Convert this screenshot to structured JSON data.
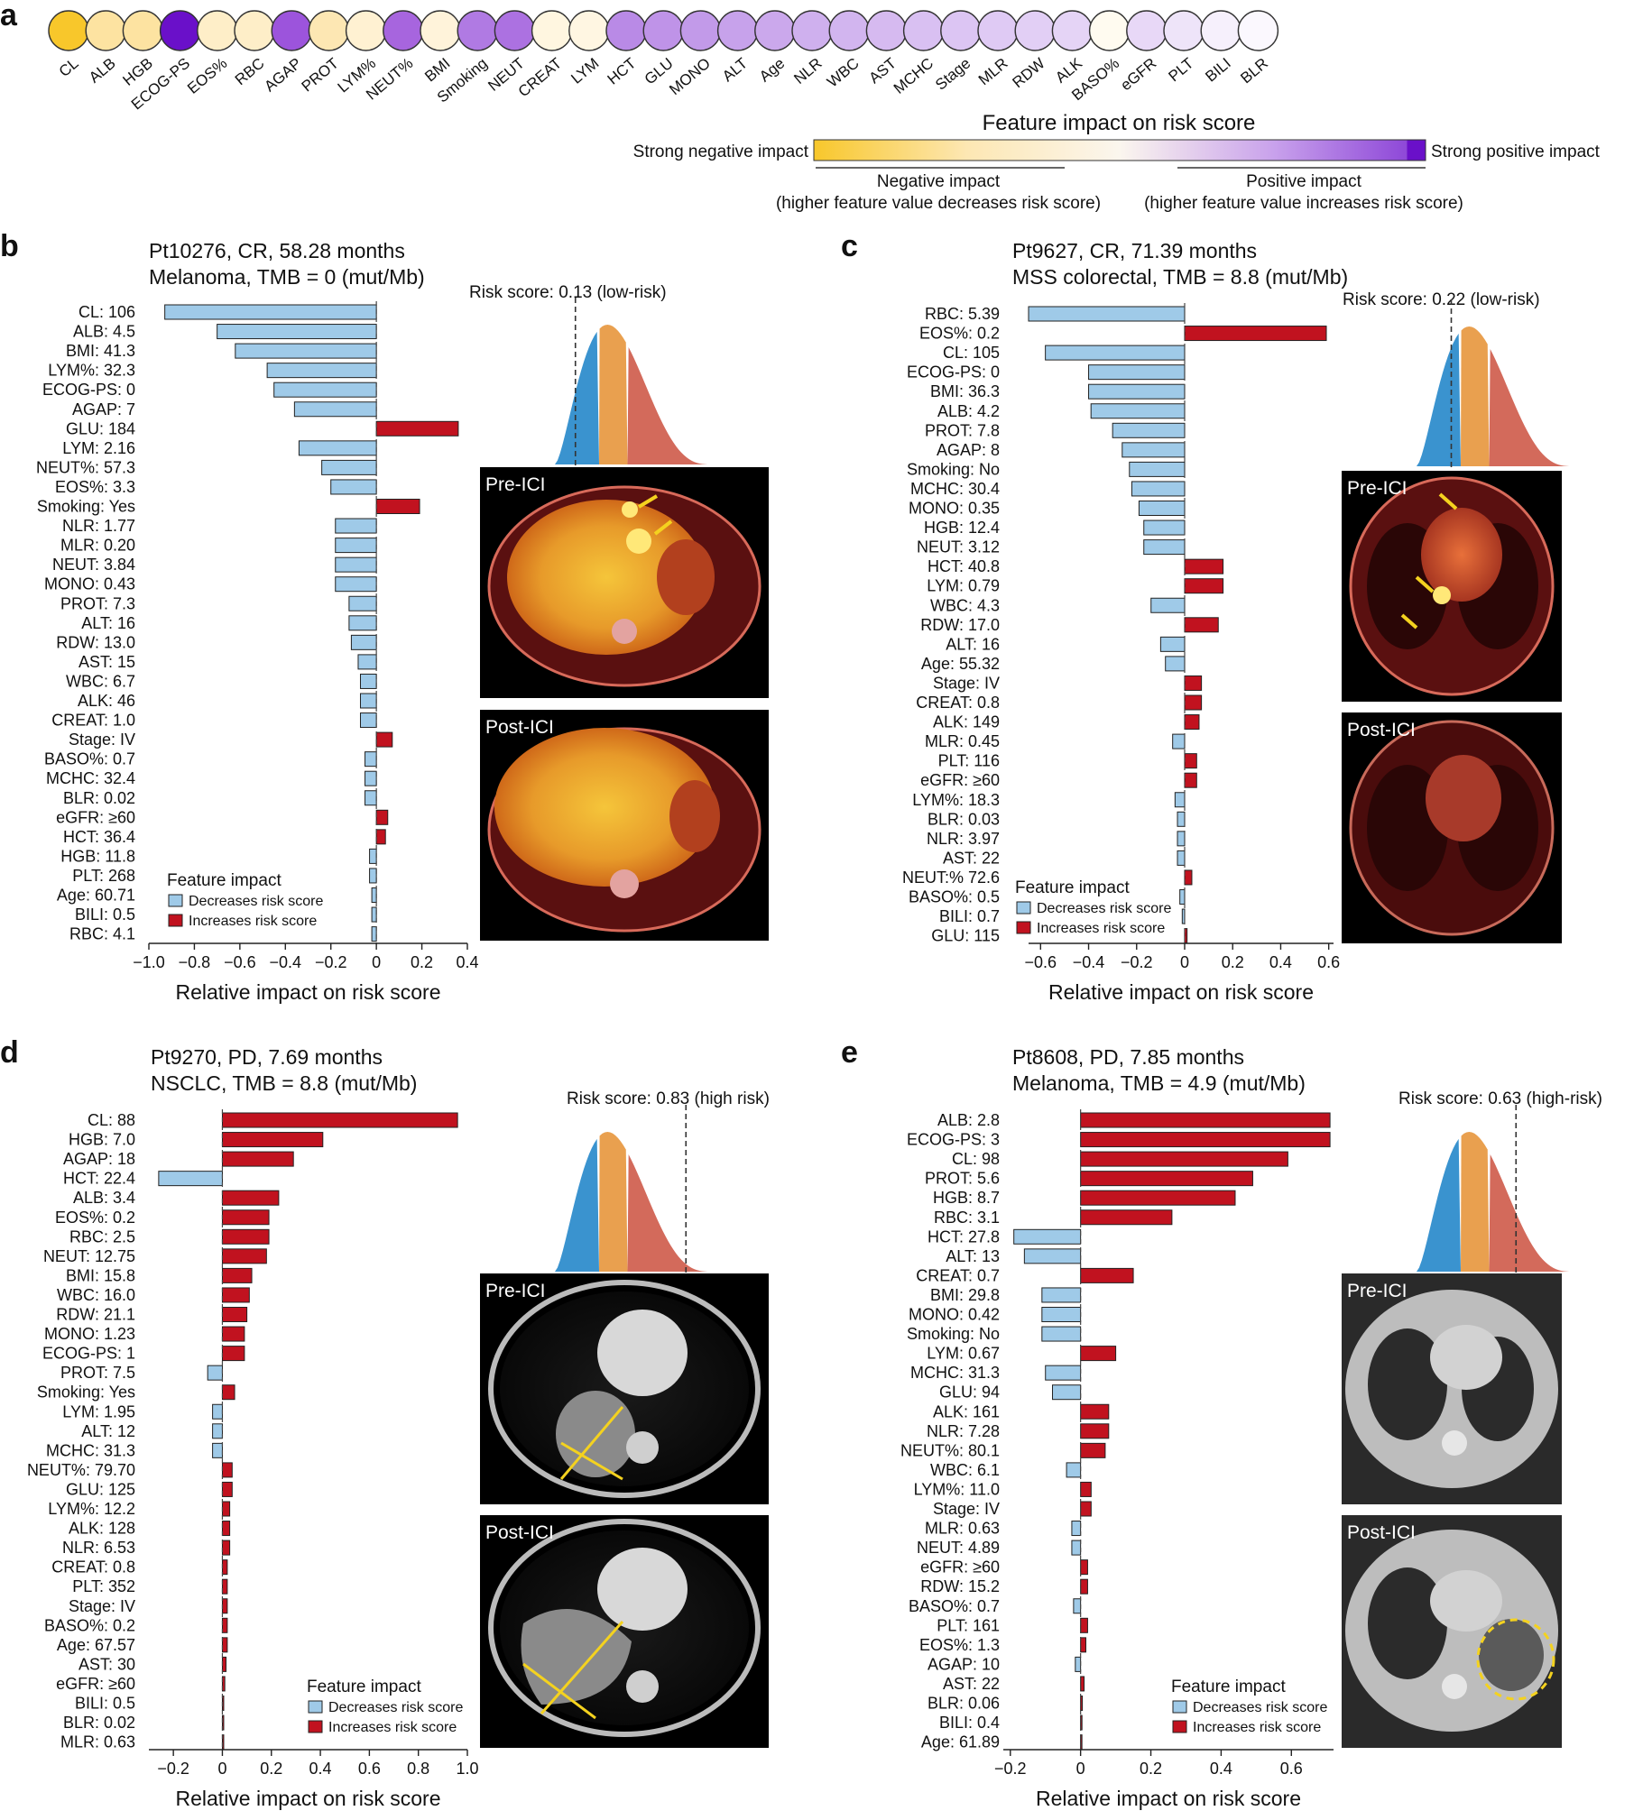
{
  "colors": {
    "decrease": "#9fcae8",
    "increase": "#c1121f",
    "negative_strong": "#f8c72b",
    "positive_strong": "#6a10c9",
    "dist_blue": "#3a93cf",
    "dist_orange": "#e9a04f",
    "dist_red": "#d36a5b"
  },
  "panel_a": {
    "letter": "a",
    "features": [
      {
        "name": "CL",
        "color": "#f8c72b"
      },
      {
        "name": "ALB",
        "color": "#fde3a1"
      },
      {
        "name": "HGB",
        "color": "#fde3a1"
      },
      {
        "name": "ECOG-PS",
        "color": "#6a10c9"
      },
      {
        "name": "EOS%",
        "color": "#feeec8"
      },
      {
        "name": "RBC",
        "color": "#feeec8"
      },
      {
        "name": "AGAP",
        "color": "#9c54dc"
      },
      {
        "name": "PROT",
        "color": "#fde7b3"
      },
      {
        "name": "LYM%",
        "color": "#fff1d2"
      },
      {
        "name": "NEUT%",
        "color": "#a765de"
      },
      {
        "name": "BMI",
        "color": "#fff3da"
      },
      {
        "name": "Smoking",
        "color": "#b07ae3"
      },
      {
        "name": "NEUT",
        "color": "#ac71e1"
      },
      {
        "name": "CREAT",
        "color": "#fff6e0"
      },
      {
        "name": "LYM",
        "color": "#fff6e2"
      },
      {
        "name": "HCT",
        "color": "#b98ae6"
      },
      {
        "name": "GLU",
        "color": "#bf93e8"
      },
      {
        "name": "MONO",
        "color": "#c29ae9"
      },
      {
        "name": "ALT",
        "color": "#c7a2eb"
      },
      {
        "name": "Age",
        "color": "#cba8ec"
      },
      {
        "name": "NLR",
        "color": "#cfb0ee"
      },
      {
        "name": "WBC",
        "color": "#d2b5ef"
      },
      {
        "name": "AST",
        "color": "#d6baf0"
      },
      {
        "name": "MCHC",
        "color": "#d9c0f2"
      },
      {
        "name": "Stage",
        "color": "#dcc5f3"
      },
      {
        "name": "MLR",
        "color": "#dfcaf4"
      },
      {
        "name": "RDW",
        "color": "#e2cff5"
      },
      {
        "name": "ALK",
        "color": "#e5d4f6"
      },
      {
        "name": "BASO%",
        "color": "#fffbf0"
      },
      {
        "name": "eGFR",
        "color": "#e8d8f7"
      },
      {
        "name": "PLT",
        "color": "#eee4f9"
      },
      {
        "name": "BILI",
        "color": "#f6f0fc"
      },
      {
        "name": "BLR",
        "color": "#fbf8fe"
      }
    ],
    "colorbar_title": "Feature impact on risk score",
    "left_label": "Strong negative impact",
    "right_label": "Strong positive impact",
    "negative_bracket": "Negative impact",
    "negative_note": "(higher feature value decreases risk score)",
    "positive_bracket": "Positive impact",
    "positive_note": "(higher feature value increases risk score)"
  },
  "chart_data": [
    {
      "panel": "b",
      "type": "bar",
      "orientation": "horizontal",
      "title": "Pt10276, CR, 58.28 months",
      "subtitle": "Melanoma, TMB = 0 (mut/Mb)",
      "risk_label": "Risk score: 0.13 (low-risk)",
      "risk_score": 0.13,
      "pre_label": "Pre-ICI",
      "post_label": "Post-ICI",
      "xlabel": "Relative impact on risk score",
      "xlim": [
        -1.0,
        0.4
      ],
      "xticks": [
        -1.0,
        -0.8,
        -0.6,
        -0.4,
        -0.2,
        0,
        0.2,
        0.4
      ],
      "xtick_labels": [
        "−1.0",
        "−0.8",
        "−0.6",
        "−0.4",
        "−0.2",
        "0",
        "0.2",
        "0.4"
      ],
      "legend_title": "Feature impact",
      "legend_decrease": "Decreases risk score",
      "legend_increase": "Increases risk score",
      "legend_position": "bottom-left",
      "features": [
        {
          "label": "CL: 106",
          "value": -0.93
        },
        {
          "label": "ALB: 4.5",
          "value": -0.7
        },
        {
          "label": "BMI: 41.3",
          "value": -0.62
        },
        {
          "label": "LYM%: 32.3",
          "value": -0.48
        },
        {
          "label": "ECOG-PS: 0",
          "value": -0.45
        },
        {
          "label": "AGAP: 7",
          "value": -0.36
        },
        {
          "label": "GLU: 184",
          "value": 0.36
        },
        {
          "label": "LYM: 2.16",
          "value": -0.34
        },
        {
          "label": "NEUT%: 57.3",
          "value": -0.24
        },
        {
          "label": "EOS%: 3.3",
          "value": -0.2
        },
        {
          "label": "Smoking: Yes",
          "value": 0.19
        },
        {
          "label": "NLR: 1.77",
          "value": -0.18
        },
        {
          "label": "MLR: 0.20",
          "value": -0.18
        },
        {
          "label": "NEUT: 3.84",
          "value": -0.18
        },
        {
          "label": "MONO: 0.43",
          "value": -0.18
        },
        {
          "label": "PROT: 7.3",
          "value": -0.12
        },
        {
          "label": "ALT: 16",
          "value": -0.12
        },
        {
          "label": "RDW: 13.0",
          "value": -0.11
        },
        {
          "label": "AST: 15",
          "value": -0.08
        },
        {
          "label": "WBC: 6.7",
          "value": -0.07
        },
        {
          "label": "ALK: 46",
          "value": -0.07
        },
        {
          "label": "CREAT: 1.0",
          "value": -0.07
        },
        {
          "label": "Stage: IV",
          "value": 0.07
        },
        {
          "label": "BASO%: 0.7",
          "value": -0.05
        },
        {
          "label": "MCHC: 32.4",
          "value": -0.05
        },
        {
          "label": "BLR: 0.02",
          "value": -0.05
        },
        {
          "label": "eGFR: ≥60",
          "value": 0.05
        },
        {
          "label": "HCT: 36.4",
          "value": 0.04
        },
        {
          "label": "HGB: 11.8",
          "value": -0.03
        },
        {
          "label": "PLT: 268",
          "value": -0.03
        },
        {
          "label": "Age: 60.71",
          "value": -0.02
        },
        {
          "label": "BILI: 0.5",
          "value": -0.02
        },
        {
          "label": "RBC: 4.1",
          "value": -0.02
        }
      ]
    },
    {
      "panel": "c",
      "type": "bar",
      "orientation": "horizontal",
      "title": "Pt9627, CR, 71.39 months",
      "subtitle": "MSS colorectal, TMB = 8.8 (mut/Mb)",
      "risk_label": "Risk score: 0.22 (low-risk)",
      "risk_score": 0.22,
      "pre_label": "Pre-ICI",
      "post_label": "Post-ICI",
      "xlabel": "Relative impact on risk score",
      "xlim": [
        -0.65,
        0.62
      ],
      "xticks": [
        -0.6,
        -0.4,
        -0.2,
        0,
        0.2,
        0.4,
        0.6
      ],
      "xtick_labels": [
        "−0.6",
        "−0.4",
        "−0.2",
        "0",
        "0.2",
        "0.4",
        "0.6"
      ],
      "legend_title": "Feature impact",
      "legend_decrease": "Decreases risk score",
      "legend_increase": "Increases risk score",
      "legend_position": "bottom-left",
      "features": [
        {
          "label": "RBC: 5.39",
          "value": -0.65
        },
        {
          "label": "EOS%: 0.2",
          "value": 0.59
        },
        {
          "label": "CL: 105",
          "value": -0.58
        },
        {
          "label": "ECOG-PS: 0",
          "value": -0.4
        },
        {
          "label": "BMI: 36.3",
          "value": -0.4
        },
        {
          "label": "ALB: 4.2",
          "value": -0.39
        },
        {
          "label": "PROT: 7.8",
          "value": -0.3
        },
        {
          "label": "AGAP: 8",
          "value": -0.26
        },
        {
          "label": "Smoking: No",
          "value": -0.23
        },
        {
          "label": "MCHC: 30.4",
          "value": -0.22
        },
        {
          "label": "MONO: 0.35",
          "value": -0.19
        },
        {
          "label": "HGB: 12.4",
          "value": -0.17
        },
        {
          "label": "NEUT: 3.12",
          "value": -0.17
        },
        {
          "label": "HCT: 40.8",
          "value": 0.16
        },
        {
          "label": "LYM: 0.79",
          "value": 0.16
        },
        {
          "label": "WBC: 4.3",
          "value": -0.14
        },
        {
          "label": "RDW: 17.0",
          "value": 0.14
        },
        {
          "label": "ALT: 16",
          "value": -0.1
        },
        {
          "label": "Age: 55.32",
          "value": -0.08
        },
        {
          "label": "Stage: IV",
          "value": 0.07
        },
        {
          "label": "CREAT: 0.8",
          "value": 0.07
        },
        {
          "label": "ALK: 149",
          "value": 0.06
        },
        {
          "label": "MLR: 0.45",
          "value": -0.05
        },
        {
          "label": "PLT: 116",
          "value": 0.05
        },
        {
          "label": "eGFR: ≥60",
          "value": 0.05
        },
        {
          "label": "LYM%: 18.3",
          "value": -0.04
        },
        {
          "label": "BLR: 0.03",
          "value": -0.03
        },
        {
          "label": "NLR: 3.97",
          "value": -0.03
        },
        {
          "label": "AST: 22",
          "value": -0.03
        },
        {
          "label": "NEUT:% 72.6",
          "value": 0.03
        },
        {
          "label": "BASO%: 0.5",
          "value": -0.02
        },
        {
          "label": "BILI: 0.7",
          "value": -0.01
        },
        {
          "label": "GLU: 115",
          "value": 0.01
        }
      ]
    },
    {
      "panel": "d",
      "type": "bar",
      "orientation": "horizontal",
      "title": "Pt9270, PD, 7.69 months",
      "subtitle": "NSCLC, TMB = 8.8 (mut/Mb)",
      "risk_label": "Risk score: 0.83 (high risk)",
      "risk_score": 0.83,
      "pre_label": "Pre-ICI",
      "post_label": "Post-ICI",
      "xlabel": "Relative impact on risk score",
      "xlim": [
        -0.3,
        1.0
      ],
      "xticks": [
        -0.2,
        0,
        0.2,
        0.4,
        0.6,
        0.8,
        1.0
      ],
      "xtick_labels": [
        "−0.2",
        "0",
        "0.2",
        "0.4",
        "0.6",
        "0.8",
        "1.0"
      ],
      "legend_title": "Feature impact",
      "legend_decrease": "Decreases risk score",
      "legend_increase": "Increases risk score",
      "legend_position": "bottom-right",
      "features": [
        {
          "label": "CL: 88",
          "value": 0.96
        },
        {
          "label": "HGB: 7.0",
          "value": 0.41
        },
        {
          "label": "AGAP: 18",
          "value": 0.29
        },
        {
          "label": "HCT: 22.4",
          "value": -0.26
        },
        {
          "label": "ALB: 3.4",
          "value": 0.23
        },
        {
          "label": "EOS%: 0.2",
          "value": 0.19
        },
        {
          "label": "RBC: 2.5",
          "value": 0.19
        },
        {
          "label": "NEUT: 12.75",
          "value": 0.18
        },
        {
          "label": "BMI: 15.8",
          "value": 0.12
        },
        {
          "label": "WBC: 16.0",
          "value": 0.11
        },
        {
          "label": "RDW: 21.1",
          "value": 0.1
        },
        {
          "label": "MONO: 1.23",
          "value": 0.09
        },
        {
          "label": "ECOG-PS: 1",
          "value": 0.09
        },
        {
          "label": "PROT: 7.5",
          "value": -0.06
        },
        {
          "label": "Smoking: Yes",
          "value": 0.05
        },
        {
          "label": "LYM: 1.95",
          "value": -0.04
        },
        {
          "label": "ALT: 12",
          "value": -0.04
        },
        {
          "label": "MCHC: 31.3",
          "value": -0.04
        },
        {
          "label": "NEUT%: 79.70",
          "value": 0.04
        },
        {
          "label": "GLU: 125",
          "value": 0.04
        },
        {
          "label": "LYM%: 12.2",
          "value": 0.03
        },
        {
          "label": "ALK: 128",
          "value": 0.03
        },
        {
          "label": "NLR: 6.53",
          "value": 0.03
        },
        {
          "label": "CREAT: 0.8",
          "value": 0.02
        },
        {
          "label": "PLT: 352",
          "value": 0.02
        },
        {
          "label": "Stage: IV",
          "value": 0.02
        },
        {
          "label": "BASO%: 0.2",
          "value": 0.02
        },
        {
          "label": "Age: 67.57",
          "value": 0.02
        },
        {
          "label": "AST: 30",
          "value": 0.015
        },
        {
          "label": "eGFR: ≥60",
          "value": 0.01
        },
        {
          "label": "BILI: 0.5",
          "value": 0.005
        },
        {
          "label": "BLR: 0.02",
          "value": 0.004
        },
        {
          "label": "MLR: 0.63",
          "value": 0.003
        }
      ]
    },
    {
      "panel": "e",
      "type": "bar",
      "orientation": "horizontal",
      "title": "Pt8608, PD, 7.85 months",
      "subtitle": "Melanoma, TMB = 4.9 (mut/Mb)",
      "risk_label": "Risk score: 0.63 (high-risk)",
      "risk_score": 0.63,
      "pre_label": "Pre-ICI",
      "post_label": "Post-ICI",
      "xlabel": "Relative impact on risk score",
      "xlim": [
        -0.22,
        0.72
      ],
      "xticks": [
        -0.2,
        0,
        0.2,
        0.4,
        0.6
      ],
      "xtick_labels": [
        "−0.2",
        "0",
        "0.2",
        "0.4",
        "0.6"
      ],
      "legend_title": "Feature impact",
      "legend_decrease": "Decreases risk score",
      "legend_increase": "Increases risk score",
      "legend_position": "bottom-right",
      "features": [
        {
          "label": "ALB: 2.8",
          "value": 0.71
        },
        {
          "label": "ECOG-PS: 3",
          "value": 0.71
        },
        {
          "label": "CL: 98",
          "value": 0.59
        },
        {
          "label": "PROT: 5.6",
          "value": 0.49
        },
        {
          "label": "HGB: 8.7",
          "value": 0.44
        },
        {
          "label": "RBC: 3.1",
          "value": 0.26
        },
        {
          "label": "HCT: 27.8",
          "value": -0.19
        },
        {
          "label": "ALT: 13",
          "value": -0.16
        },
        {
          "label": "CREAT: 0.7",
          "value": 0.15
        },
        {
          "label": "BMI: 29.8",
          "value": -0.11
        },
        {
          "label": "MONO: 0.42",
          "value": -0.11
        },
        {
          "label": "Smoking: No",
          "value": -0.11
        },
        {
          "label": "LYM: 0.67",
          "value": 0.1
        },
        {
          "label": "MCHC: 31.3",
          "value": -0.1
        },
        {
          "label": "GLU: 94",
          "value": -0.08
        },
        {
          "label": "ALK: 161",
          "value": 0.08
        },
        {
          "label": "NLR: 7.28",
          "value": 0.08
        },
        {
          "label": "NEUT%: 80.1",
          "value": 0.07
        },
        {
          "label": "WBC: 6.1",
          "value": -0.04
        },
        {
          "label": "LYM%: 11.0",
          "value": 0.03
        },
        {
          "label": "Stage: IV",
          "value": 0.03
        },
        {
          "label": "MLR: 0.63",
          "value": -0.025
        },
        {
          "label": "NEUT: 4.89",
          "value": -0.025
        },
        {
          "label": "eGFR: ≥60",
          "value": 0.02
        },
        {
          "label": "RDW: 15.2",
          "value": 0.02
        },
        {
          "label": "BASO%: 0.7",
          "value": -0.02
        },
        {
          "label": "PLT: 161",
          "value": 0.02
        },
        {
          "label": "EOS%: 1.3",
          "value": 0.015
        },
        {
          "label": "AGAP: 10",
          "value": -0.015
        },
        {
          "label": "AST: 22",
          "value": 0.01
        },
        {
          "label": "BLR: 0.06",
          "value": 0.005
        },
        {
          "label": "BILI: 0.4",
          "value": 0.004
        },
        {
          "label": "Age: 61.89",
          "value": 0.003
        }
      ]
    }
  ]
}
